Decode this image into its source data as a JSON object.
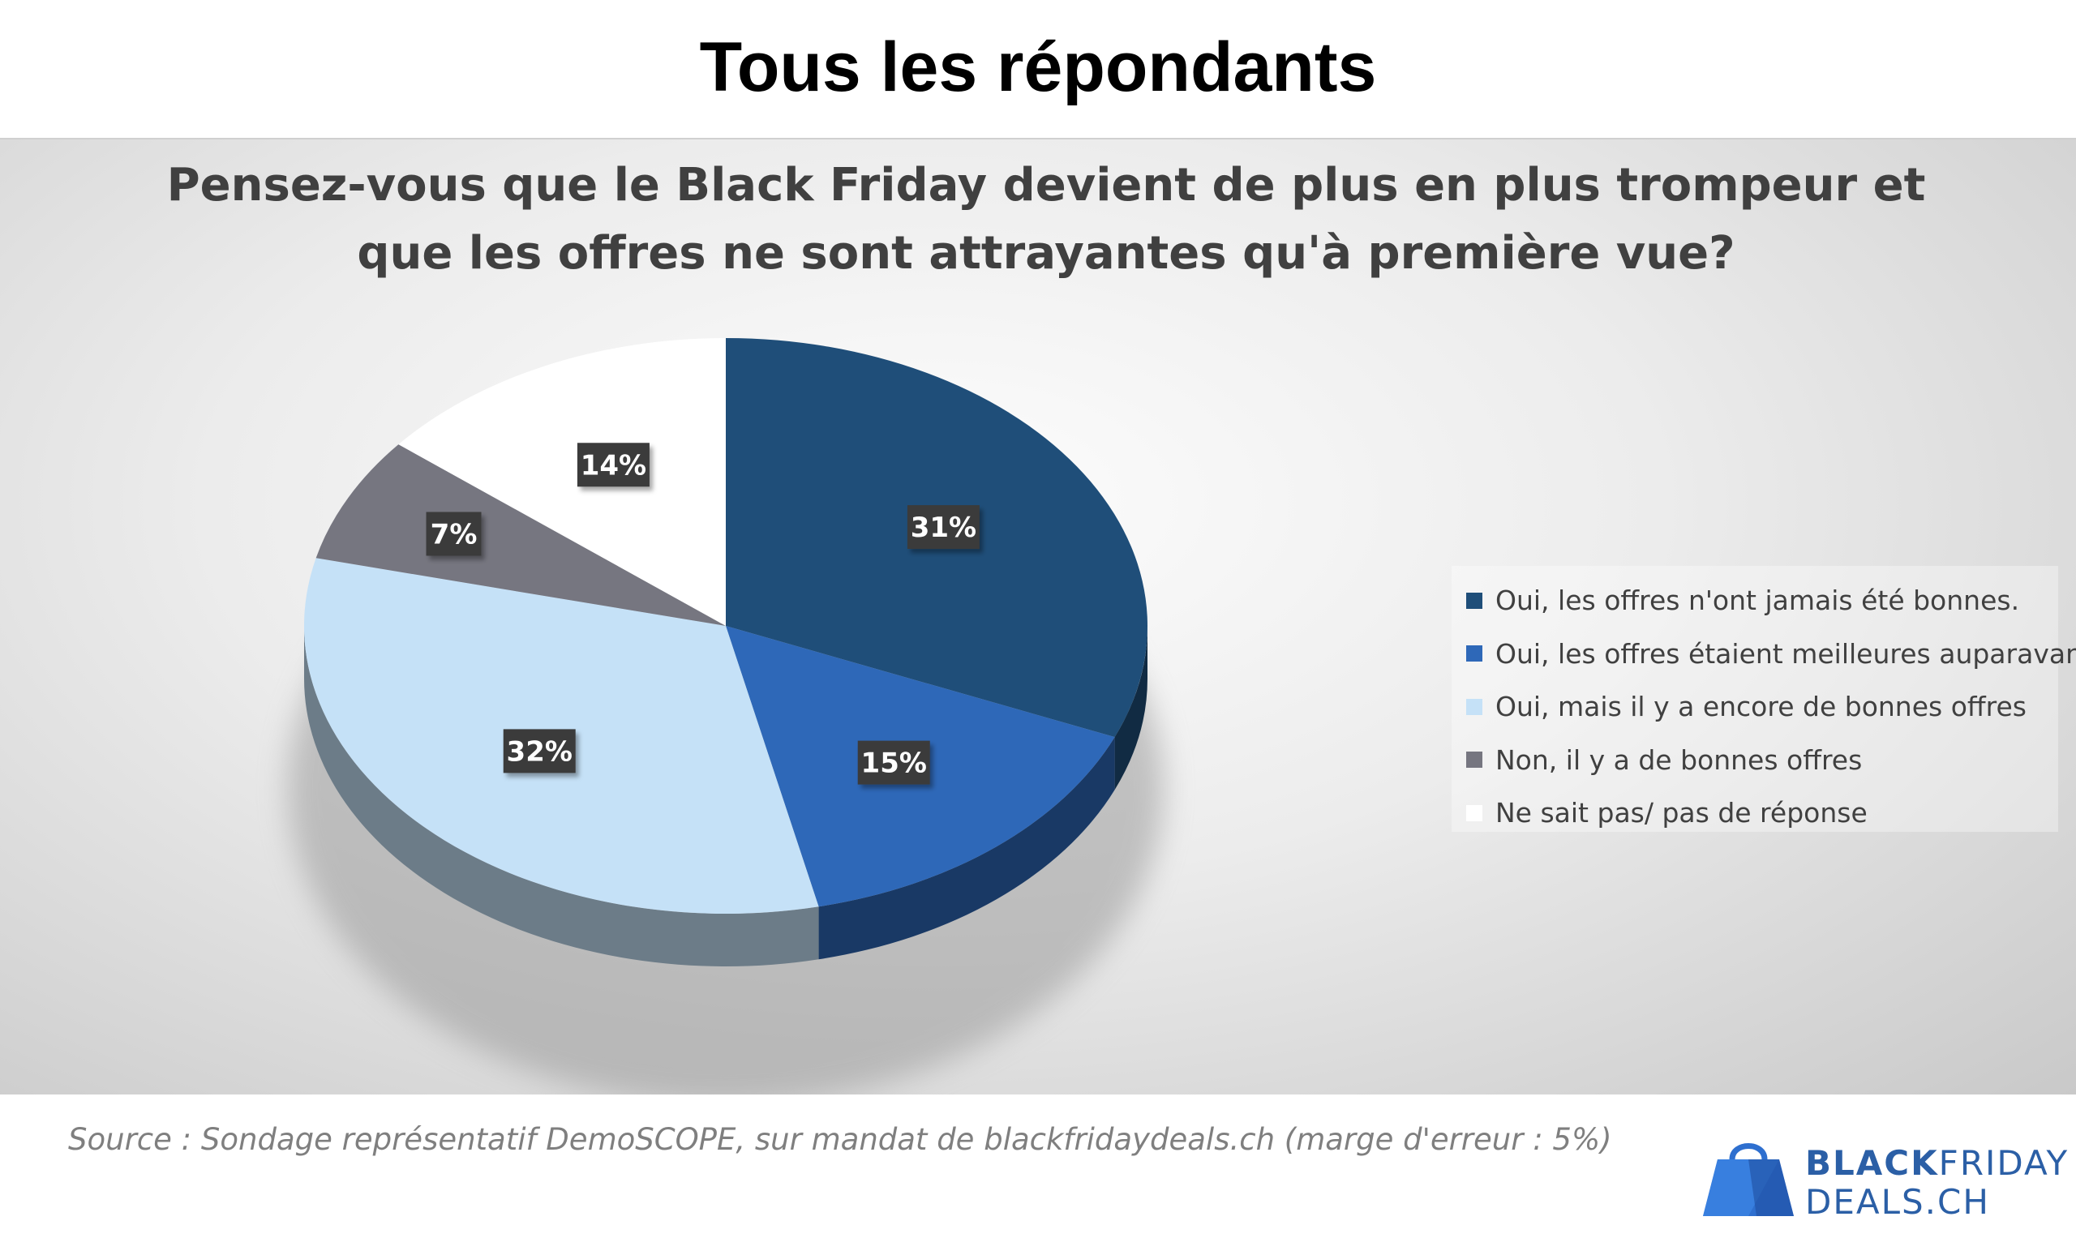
{
  "page": {
    "title": "Tous les répondants"
  },
  "chart_data": {
    "type": "pie",
    "title_lines": [
      "Pensez-vous que le Black Friday devient de plus en plus trompeur et",
      "que les offres ne sont attrayantes qu'à première vue?"
    ],
    "slices": [
      {
        "label": "Oui, les offres n'ont jamais été bonnes.",
        "value": 31,
        "data_label": "31%",
        "color": "#1f4e79"
      },
      {
        "label": "Oui, les offres étaient meilleures auparavant",
        "value": 15,
        "data_label": "15%",
        "color": "#2e68b8"
      },
      {
        "label": "Oui, mais il y a encore de bonnes offres",
        "value": 32,
        "data_label": "32%",
        "color": "#c5e1f7"
      },
      {
        "label": "Non, il y a de bonnes offres",
        "value": 7,
        "data_label": "7%",
        "color": "#767680"
      },
      {
        "label": "Ne sait pas/ pas de réponse",
        "value": 14,
        "data_label": "14%",
        "color": "#ffffff"
      }
    ],
    "start": "12 o'clock",
    "direction": "clockwise",
    "style": "3d",
    "legend_position": "right"
  },
  "footer": {
    "source": "Source : Sondage représentatif DemoSCOPE, sur mandat de blackfridaydeals.ch (marge d'erreur : 5%)"
  },
  "brand": {
    "line1_bold": "BLACK",
    "line1_rest": "FRIDAY",
    "line2": "DEALS.CH",
    "color": "#2b5fa6"
  }
}
